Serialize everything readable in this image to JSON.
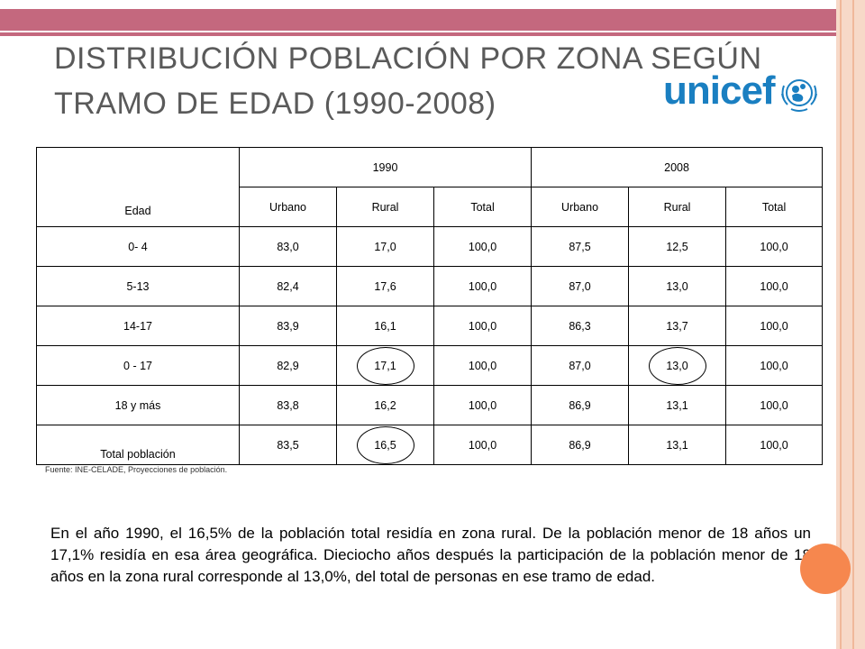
{
  "title": "DISTRIBUCIÓN POBLACIÓN POR ZONA SEGÚN TRAMO DE EDAD (1990-2008)",
  "logo": {
    "text": "unicef"
  },
  "colors": {
    "band": "#c4687e",
    "accent_dot": "#f6874e",
    "logo": "#1a7fc1",
    "title_text": "#5a5a5a"
  },
  "table": {
    "edad_label": "Edad",
    "years": [
      "1990",
      "2008"
    ],
    "subheaders": [
      "Urbano",
      "Rural",
      "Total",
      "Urbano",
      "Rural",
      "Total"
    ],
    "rows": [
      {
        "edad": "0- 4",
        "values": [
          "83,0",
          "17,0",
          "100,0",
          "87,5",
          "12,5",
          "100,0"
        ]
      },
      {
        "edad": "5-13",
        "values": [
          "82,4",
          "17,6",
          "100,0",
          "87,0",
          "13,0",
          "100,0"
        ]
      },
      {
        "edad": "14-17",
        "values": [
          "83,9",
          "16,1",
          "100,0",
          "86,3",
          "13,7",
          "100,0"
        ]
      },
      {
        "edad": "0 - 17",
        "values": [
          "82,9",
          "17,1",
          "100,0",
          "87,0",
          "13,0",
          "100,0"
        ]
      },
      {
        "edad": "18 y más",
        "values": [
          "83,8",
          "16,2",
          "100,0",
          "86,9",
          "13,1",
          "100,0"
        ]
      },
      {
        "edad": "Total población",
        "values": [
          "83,5",
          "16,5",
          "100,0",
          "86,9",
          "13,1",
          "100,0"
        ]
      }
    ]
  },
  "source": "Fuente: INE-CELADE, Proyecciones de población.",
  "paragraph": "En el año 1990, el 16,5% de la población total residía en zona rural. De la población menor de 18 años un 17,1% residía en esa área geográfica. Dieciocho años después la participación de la población menor de 18 años en la zona rural corresponde al 13,0%, del total de personas en ese tramo de edad."
}
